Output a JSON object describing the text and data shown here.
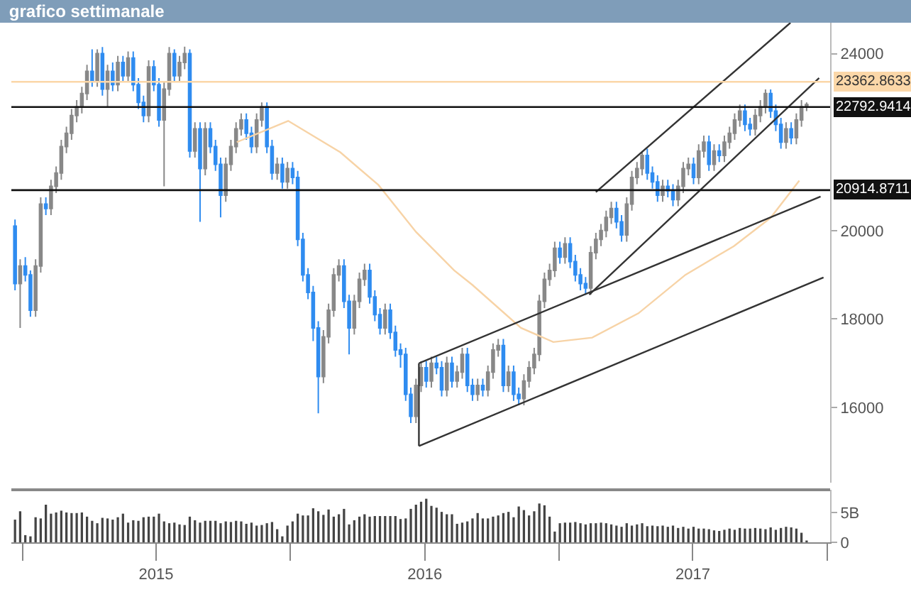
{
  "chart_data": [
    {
      "type": "candlestick",
      "title": "grafico settimanale",
      "tick_labels": "y",
      "x": [
        "2014-12-22",
        "2014-12-29",
        "2015-01-05",
        "2015-01-12",
        "2015-01-19",
        "2015-01-26",
        "2015-02-02",
        "2015-02-09",
        "2015-02-16",
        "2015-02-23",
        "2015-03-02",
        "2015-03-09",
        "2015-03-16",
        "2015-03-23",
        "2015-03-30",
        "2015-04-06",
        "2015-04-13",
        "2015-04-20",
        "2015-04-27",
        "2015-05-04",
        "2015-05-11",
        "2015-05-18",
        "2015-05-25",
        "2015-06-01",
        "2015-06-08",
        "2015-06-15",
        "2015-06-22",
        "2015-06-29",
        "2015-07-06",
        "2015-07-13",
        "2015-07-20",
        "2015-07-27",
        "2015-08-03",
        "2015-08-10",
        "2015-08-17",
        "2015-08-24",
        "2015-08-31",
        "2015-09-07",
        "2015-09-14",
        "2015-09-21",
        "2015-09-28",
        "2015-10-05",
        "2015-10-12",
        "2015-10-19",
        "2015-10-26",
        "2015-11-02",
        "2015-11-09",
        "2015-11-16",
        "2015-11-23",
        "2015-11-30",
        "2015-12-07",
        "2015-12-14",
        "2015-12-21",
        "2015-12-28",
        "2016-01-04",
        "2016-01-11",
        "2016-01-18",
        "2016-01-25",
        "2016-02-01",
        "2016-02-08",
        "2016-02-15",
        "2016-02-22",
        "2016-02-29",
        "2016-03-07",
        "2016-03-14",
        "2016-03-21",
        "2016-03-28",
        "2016-04-04",
        "2016-04-11",
        "2016-04-18",
        "2016-04-25",
        "2016-05-02",
        "2016-05-09",
        "2016-05-16",
        "2016-05-23",
        "2016-05-30",
        "2016-06-06",
        "2016-06-13",
        "2016-06-20",
        "2016-06-27",
        "2016-07-04",
        "2016-07-11",
        "2016-07-18",
        "2016-07-25",
        "2016-08-01",
        "2016-08-08",
        "2016-08-15",
        "2016-08-22",
        "2016-08-29",
        "2016-09-05",
        "2016-09-12",
        "2016-09-19",
        "2016-09-26",
        "2016-10-03",
        "2016-10-10",
        "2016-10-17",
        "2016-10-24",
        "2016-10-31",
        "2016-11-07",
        "2016-11-14",
        "2016-11-21",
        "2016-11-28",
        "2016-12-05",
        "2016-12-12",
        "2016-12-19",
        "2016-12-26",
        "2017-01-02",
        "2017-01-09",
        "2017-01-16",
        "2017-01-23",
        "2017-01-30",
        "2017-02-06",
        "2017-02-13",
        "2017-02-20",
        "2017-02-27",
        "2017-03-06",
        "2017-03-13",
        "2017-03-20",
        "2017-03-27",
        "2017-04-03",
        "2017-04-10",
        "2017-04-17",
        "2017-04-24",
        "2017-05-01",
        "2017-05-08",
        "2017-05-15",
        "2017-05-22",
        "2017-05-29",
        "2017-06-05",
        "2017-06-12",
        "2017-06-19",
        "2017-06-26",
        "2017-07-03",
        "2017-07-10",
        "2017-07-17",
        "2017-07-24",
        "2017-07-31",
        "2017-08-07",
        "2017-08-14",
        "2017-08-21",
        "2017-08-28",
        "2017-09-04",
        "2017-09-11",
        "2017-09-18",
        "2017-09-25",
        "2017-10-02",
        "2017-10-09",
        "2017-10-16",
        "2017-10-23",
        "2017-10-30",
        "2017-11-06",
        "2017-11-13",
        "2017-11-20",
        "2017-11-27",
        "2017-12-04"
      ],
      "ohlc": [
        [
          20100,
          20250,
          18650,
          18800
        ],
        [
          18800,
          19350,
          17800,
          19200
        ],
        [
          19200,
          19400,
          18850,
          19000
        ],
        [
          19000,
          19100,
          18050,
          18200
        ],
        [
          18200,
          19350,
          18050,
          19200
        ],
        [
          19200,
          20750,
          19050,
          20600
        ],
        [
          20600,
          20750,
          20350,
          20500
        ],
        [
          20500,
          21150,
          20350,
          21000
        ],
        [
          21000,
          21450,
          20850,
          21300
        ],
        [
          21300,
          22050,
          21150,
          21900
        ],
        [
          21900,
          22350,
          21750,
          22200
        ],
        [
          22200,
          22750,
          22050,
          22600
        ],
        [
          22600,
          22950,
          22450,
          22800
        ],
        [
          22800,
          23250,
          22650,
          23100
        ],
        [
          23100,
          23750,
          22950,
          23600
        ],
        [
          23600,
          24100,
          23250,
          23400
        ],
        [
          23400,
          24100,
          23250,
          24000
        ],
        [
          24000,
          24150,
          23050,
          23200
        ],
        [
          23200,
          23750,
          22800,
          23600
        ],
        [
          23600,
          23800,
          23150,
          23300
        ],
        [
          23300,
          23950,
          23150,
          23800
        ],
        [
          23800,
          23950,
          23350,
          23500
        ],
        [
          23500,
          24050,
          23350,
          23900
        ],
        [
          23900,
          24050,
          23150,
          23300
        ],
        [
          23300,
          23450,
          22750,
          22900
        ],
        [
          22900,
          23050,
          22450,
          22600
        ],
        [
          22600,
          23850,
          22450,
          23700
        ],
        [
          23700,
          23850,
          23150,
          23300
        ],
        [
          23300,
          23450,
          22350,
          22500
        ],
        [
          22500,
          23350,
          21000,
          23200
        ],
        [
          23200,
          24150,
          23050,
          24000
        ],
        [
          24000,
          24100,
          23350,
          23500
        ],
        [
          23500,
          23950,
          23350,
          23800
        ],
        [
          23800,
          24160,
          23650,
          24000
        ],
        [
          24000,
          24100,
          21650,
          21800
        ],
        [
          21800,
          22450,
          21650,
          22300
        ],
        [
          22300,
          22450,
          20200,
          21400
        ],
        [
          21400,
          22450,
          21250,
          22300
        ],
        [
          22300,
          22450,
          21750,
          21900
        ],
        [
          21900,
          22050,
          21350,
          21500
        ],
        [
          21500,
          21650,
          20300,
          20800
        ],
        [
          20800,
          21650,
          20650,
          21500
        ],
        [
          21500,
          22050,
          21350,
          21900
        ],
        [
          21900,
          22450,
          21750,
          22300
        ],
        [
          22300,
          22650,
          22150,
          22500
        ],
        [
          22500,
          22650,
          22050,
          22200
        ],
        [
          22200,
          22350,
          21750,
          21900
        ],
        [
          21900,
          22650,
          21750,
          22500
        ],
        [
          22500,
          22900,
          22350,
          22800
        ],
        [
          22800,
          22900,
          21750,
          21900
        ],
        [
          21900,
          22050,
          21150,
          21300
        ],
        [
          21300,
          21650,
          21150,
          21500
        ],
        [
          21500,
          21650,
          20950,
          21100
        ],
        [
          21100,
          21550,
          20950,
          21400
        ],
        [
          21400,
          21550,
          21050,
          21200
        ],
        [
          21200,
          21350,
          19650,
          19800
        ],
        [
          19800,
          19950,
          18850,
          19000
        ],
        [
          19000,
          19150,
          18450,
          18600
        ],
        [
          18600,
          18750,
          17500,
          17800
        ],
        [
          17800,
          17950,
          15870,
          16700
        ],
        [
          16700,
          17750,
          16550,
          17600
        ],
        [
          17600,
          18350,
          17450,
          18200
        ],
        [
          18200,
          19150,
          18050,
          19000
        ],
        [
          19000,
          19350,
          18850,
          19200
        ],
        [
          19200,
          19350,
          18250,
          18400
        ],
        [
          18400,
          18550,
          17200,
          17800
        ],
        [
          17800,
          18550,
          17650,
          18400
        ],
        [
          18400,
          19050,
          18250,
          18900
        ],
        [
          18900,
          19250,
          18750,
          19100
        ],
        [
          19100,
          19250,
          18350,
          18500
        ],
        [
          18500,
          18650,
          17950,
          18100
        ],
        [
          18100,
          18250,
          17650,
          17800
        ],
        [
          17800,
          18350,
          17650,
          18200
        ],
        [
          18200,
          18350,
          17550,
          17700
        ],
        [
          17700,
          17850,
          17150,
          17300
        ],
        [
          17300,
          17450,
          16900,
          17200
        ],
        [
          17200,
          17350,
          16150,
          16300
        ],
        [
          16300,
          16450,
          15650,
          15800
        ],
        [
          15800,
          16650,
          15650,
          16500
        ],
        [
          16500,
          17050,
          16350,
          16900
        ],
        [
          16900,
          17050,
          16450,
          16600
        ],
        [
          16600,
          17150,
          16450,
          17000
        ],
        [
          17000,
          17150,
          16750,
          16900
        ],
        [
          16900,
          17050,
          16250,
          16400
        ],
        [
          16400,
          17150,
          16250,
          17000
        ],
        [
          17000,
          17150,
          16450,
          16600
        ],
        [
          16600,
          16950,
          16450,
          16800
        ],
        [
          16800,
          17350,
          16650,
          17200
        ],
        [
          17200,
          17350,
          16350,
          16500
        ],
        [
          16500,
          16650,
          16150,
          16300
        ],
        [
          16300,
          16650,
          16150,
          16500
        ],
        [
          16500,
          16650,
          16250,
          16400
        ],
        [
          16400,
          16950,
          16250,
          16800
        ],
        [
          16800,
          17450,
          16650,
          17300
        ],
        [
          17300,
          17550,
          17150,
          17400
        ],
        [
          17400,
          17550,
          16350,
          16500
        ],
        [
          16500,
          16950,
          16350,
          16800
        ],
        [
          16800,
          16950,
          16150,
          16300
        ],
        [
          16300,
          16450,
          16050,
          16200
        ],
        [
          16200,
          16750,
          16050,
          16600
        ],
        [
          16600,
          17050,
          16450,
          16900
        ],
        [
          16900,
          17350,
          16750,
          17200
        ],
        [
          17200,
          18550,
          17050,
          18400
        ],
        [
          18400,
          19050,
          18250,
          18900
        ],
        [
          18900,
          19250,
          18750,
          19100
        ],
        [
          19100,
          19750,
          18950,
          19600
        ],
        [
          19600,
          19750,
          19250,
          19400
        ],
        [
          19400,
          19850,
          19250,
          19700
        ],
        [
          19700,
          19850,
          19150,
          19300
        ],
        [
          19300,
          19450,
          18850,
          19000
        ],
        [
          19000,
          19150,
          18650,
          18800
        ],
        [
          18800,
          18950,
          18550,
          18700
        ],
        [
          18700,
          19650,
          18550,
          19500
        ],
        [
          19500,
          19950,
          19350,
          19800
        ],
        [
          19800,
          20150,
          19650,
          20000
        ],
        [
          20000,
          20450,
          19850,
          20300
        ],
        [
          20300,
          20650,
          20150,
          20500
        ],
        [
          20500,
          20650,
          20050,
          20200
        ],
        [
          20200,
          20350,
          19750,
          19900
        ],
        [
          19900,
          20750,
          19750,
          20600
        ],
        [
          20600,
          21350,
          20450,
          21200
        ],
        [
          21200,
          21550,
          21050,
          21400
        ],
        [
          21400,
          21800,
          21250,
          21700
        ],
        [
          21700,
          21850,
          21150,
          21300
        ],
        [
          21300,
          21450,
          20950,
          21100
        ],
        [
          21100,
          21250,
          20650,
          20800
        ],
        [
          20800,
          21150,
          20650,
          21000
        ],
        [
          21000,
          21150,
          20750,
          20900
        ],
        [
          20900,
          21050,
          20550,
          20700
        ],
        [
          20700,
          21150,
          20550,
          21000
        ],
        [
          21000,
          21550,
          20850,
          21400
        ],
        [
          21400,
          21650,
          21250,
          21500
        ],
        [
          21500,
          21650,
          21050,
          21200
        ],
        [
          21200,
          21950,
          21050,
          21800
        ],
        [
          21800,
          22150,
          21650,
          22000
        ],
        [
          22000,
          22150,
          21350,
          21500
        ],
        [
          21500,
          21950,
          21350,
          21800
        ],
        [
          21800,
          21950,
          21550,
          21700
        ],
        [
          21700,
          22150,
          21550,
          22000
        ],
        [
          22000,
          22350,
          21850,
          22200
        ],
        [
          22200,
          22650,
          22050,
          22500
        ],
        [
          22500,
          22850,
          22350,
          22700
        ],
        [
          22700,
          22850,
          22250,
          22400
        ],
        [
          22400,
          22550,
          22150,
          22300
        ],
        [
          22300,
          22750,
          22150,
          22600
        ],
        [
          22600,
          22950,
          22450,
          22800
        ],
        [
          22800,
          23190,
          22650,
          23100
        ],
        [
          23100,
          23190,
          22550,
          22700
        ],
        [
          22700,
          22850,
          22250,
          22400
        ],
        [
          22400,
          22550,
          21850,
          22000
        ],
        [
          22000,
          22450,
          21850,
          22300
        ],
        [
          22300,
          22450,
          21950,
          22100
        ],
        [
          22100,
          22650,
          21950,
          22500
        ],
        [
          22500,
          22950,
          22350,
          22800
        ],
        [
          22800,
          22900,
          22700,
          22850
        ]
      ],
      "colors": [
        "#2f8cf0",
        "#888888",
        "#2f8cf0",
        "#2f8cf0",
        "#888888",
        "#888888",
        "#2f8cf0",
        "#888888",
        "#888888",
        "#888888",
        "#888888",
        "#888888",
        "#888888",
        "#888888",
        "#888888",
        "#2f8cf0",
        "#888888",
        "#2f8cf0",
        "#888888",
        "#2f8cf0",
        "#888888",
        "#2f8cf0",
        "#888888",
        "#2f8cf0",
        "#2f8cf0",
        "#2f8cf0",
        "#888888",
        "#2f8cf0",
        "#2f8cf0",
        "#888888",
        "#888888",
        "#2f8cf0",
        "#888888",
        "#888888",
        "#2f8cf0",
        "#888888",
        "#2f8cf0",
        "#888888",
        "#2f8cf0",
        "#2f8cf0",
        "#2f8cf0",
        "#888888",
        "#888888",
        "#888888",
        "#888888",
        "#2f8cf0",
        "#2f8cf0",
        "#888888",
        "#888888",
        "#2f8cf0",
        "#2f8cf0",
        "#888888",
        "#2f8cf0",
        "#888888",
        "#2f8cf0",
        "#2f8cf0",
        "#2f8cf0",
        "#2f8cf0",
        "#2f8cf0",
        "#2f8cf0",
        "#888888",
        "#888888",
        "#888888",
        "#888888",
        "#2f8cf0",
        "#2f8cf0",
        "#888888",
        "#888888",
        "#888888",
        "#2f8cf0",
        "#2f8cf0",
        "#2f8cf0",
        "#888888",
        "#2f8cf0",
        "#2f8cf0",
        "#2f8cf0",
        "#2f8cf0",
        "#2f8cf0",
        "#888888",
        "#888888",
        "#2f8cf0",
        "#888888",
        "#2f8cf0",
        "#2f8cf0",
        "#888888",
        "#2f8cf0",
        "#888888",
        "#888888",
        "#2f8cf0",
        "#2f8cf0",
        "#888888",
        "#2f8cf0",
        "#888888",
        "#888888",
        "#888888",
        "#2f8cf0",
        "#888888",
        "#2f8cf0",
        "#2f8cf0",
        "#888888",
        "#888888",
        "#888888",
        "#888888",
        "#888888",
        "#888888",
        "#888888",
        "#2f8cf0",
        "#888888",
        "#2f8cf0",
        "#2f8cf0",
        "#2f8cf0",
        "#2f8cf0",
        "#888888",
        "#888888",
        "#888888",
        "#888888",
        "#888888",
        "#2f8cf0",
        "#2f8cf0",
        "#888888",
        "#888888",
        "#888888",
        "#888888",
        "#2f8cf0",
        "#2f8cf0",
        "#2f8cf0",
        "#888888",
        "#2f8cf0",
        "#2f8cf0",
        "#888888",
        "#888888",
        "#888888",
        "#2f8cf0",
        "#888888",
        "#888888",
        "#2f8cf0",
        "#888888",
        "#2f8cf0",
        "#888888",
        "#888888",
        "#888888",
        "#888888",
        "#2f8cf0",
        "#2f8cf0",
        "#888888",
        "#888888",
        "#888888",
        "#2f8cf0",
        "#2f8cf0",
        "#2f8cf0",
        "#888888",
        "#2f8cf0",
        "#888888",
        "#888888",
        "#888888"
      ],
      "series": [
        {
          "type": "line",
          "color": "#f7d3a6",
          "x": [
            "2015-10-20",
            "2015-12-29",
            "2016-03-09",
            "2016-04-30",
            "2016-06-20",
            "2016-08-11",
            "2016-09-05",
            "2016-11-10",
            "2016-12-24",
            "2017-02-15",
            "2017-04-19",
            "2017-06-22",
            "2017-08-27",
            "2017-10-16",
            "2017-11-24"
          ],
          "values": [
            22000,
            22480,
            21770,
            21030,
            19970,
            19100,
            18770,
            17800,
            17480,
            17580,
            18130,
            19000,
            19650,
            20290,
            21130
          ]
        },
        {
          "type": "line",
          "color": "#333333",
          "x": [
            "2016-06-24",
            "2017-12-27"
          ],
          "values": [
            15130,
            18940
          ]
        },
        {
          "type": "line",
          "color": "#333333",
          "x": [
            "2016-06-24",
            "2017-12-23"
          ],
          "values": [
            17000,
            20770
          ]
        },
        {
          "type": "line",
          "color": "#333333",
          "x": [
            "2016-06-24",
            "2016-06-24"
          ],
          "values": [
            15130,
            17000
          ]
        },
        {
          "type": "line",
          "color": "#333333",
          "x": [
            "2017-02-11",
            "2017-12-21"
          ],
          "values": [
            18550,
            23450
          ]
        },
        {
          "type": "line",
          "color": "#333333",
          "x": [
            "2017-02-20",
            "2017-11-12"
          ],
          "values": [
            20870,
            24700
          ]
        }
      ],
      "xlim": [
        "2014-12-17",
        "2018-01-05"
      ],
      "ylim": [
        14300,
        24700
      ],
      "yticks": [
        16000,
        18000,
        20000,
        24000
      ],
      "ref_lines": [
        {
          "axis": "y",
          "value": 23362.8633,
          "label": "23362.8633",
          "color": "#fbd7a8"
        },
        {
          "axis": "y",
          "value": 22792.9414,
          "label": "22792.9414",
          "color": "#111111"
        },
        {
          "axis": "y",
          "value": 20914.8711,
          "label": "20914.8711",
          "color": "#111111"
        }
      ]
    },
    {
      "type": "bar",
      "color": "#444444",
      "x": [
        "2014-12-22",
        "2014-12-29",
        "2015-01-05",
        "2015-01-12",
        "2015-01-19",
        "2015-01-26",
        "2015-02-02",
        "2015-02-09",
        "2015-02-16",
        "2015-02-23",
        "2015-03-02",
        "2015-03-09",
        "2015-03-16",
        "2015-03-23",
        "2015-03-30",
        "2015-04-06",
        "2015-04-13",
        "2015-04-20",
        "2015-04-27",
        "2015-05-04",
        "2015-05-11",
        "2015-05-18",
        "2015-05-25",
        "2015-06-01",
        "2015-06-08",
        "2015-06-15",
        "2015-06-22",
        "2015-06-29",
        "2015-07-06",
        "2015-07-13",
        "2015-07-20",
        "2015-07-27",
        "2015-08-03",
        "2015-08-10",
        "2015-08-17",
        "2015-08-24",
        "2015-08-31",
        "2015-09-07",
        "2015-09-14",
        "2015-09-21",
        "2015-09-28",
        "2015-10-05",
        "2015-10-12",
        "2015-10-19",
        "2015-10-26",
        "2015-11-02",
        "2015-11-09",
        "2015-11-16",
        "2015-11-23",
        "2015-11-30",
        "2015-12-07",
        "2015-12-14",
        "2015-12-21",
        "2015-12-28",
        "2016-01-04",
        "2016-01-11",
        "2016-01-18",
        "2016-01-25",
        "2016-02-01",
        "2016-02-08",
        "2016-02-15",
        "2016-02-22",
        "2016-02-29",
        "2016-03-07",
        "2016-03-14",
        "2016-03-21",
        "2016-03-28",
        "2016-04-04",
        "2016-04-11",
        "2016-04-18",
        "2016-04-25",
        "2016-05-02",
        "2016-05-09",
        "2016-05-16",
        "2016-05-23",
        "2016-05-30",
        "2016-06-06",
        "2016-06-13",
        "2016-06-20",
        "2016-06-27",
        "2016-07-04",
        "2016-07-11",
        "2016-07-18",
        "2016-07-25",
        "2016-08-01",
        "2016-08-08",
        "2016-08-15",
        "2016-08-22",
        "2016-08-29",
        "2016-09-05",
        "2016-09-12",
        "2016-09-19",
        "2016-09-26",
        "2016-10-03",
        "2016-10-10",
        "2016-10-17",
        "2016-10-24",
        "2016-10-31",
        "2016-11-07",
        "2016-11-14",
        "2016-11-21",
        "2016-11-28",
        "2016-12-05",
        "2016-12-12",
        "2016-12-19",
        "2016-12-26",
        "2017-01-02",
        "2017-01-09",
        "2017-01-16",
        "2017-01-23",
        "2017-01-30",
        "2017-02-06",
        "2017-02-13",
        "2017-02-20",
        "2017-02-27",
        "2017-03-06",
        "2017-03-13",
        "2017-03-20",
        "2017-03-27",
        "2017-04-03",
        "2017-04-10",
        "2017-04-17",
        "2017-04-24",
        "2017-05-01",
        "2017-05-08",
        "2017-05-15",
        "2017-05-22",
        "2017-05-29",
        "2017-06-05",
        "2017-06-12",
        "2017-06-19",
        "2017-06-26",
        "2017-07-03",
        "2017-07-10",
        "2017-07-17",
        "2017-07-24",
        "2017-07-31",
        "2017-08-07",
        "2017-08-14",
        "2017-08-21",
        "2017-08-28",
        "2017-09-04",
        "2017-09-11",
        "2017-09-18",
        "2017-09-25",
        "2017-10-02",
        "2017-10-09",
        "2017-10-16",
        "2017-10-23",
        "2017-10-30",
        "2017-11-06",
        "2017-11-13",
        "2017-11-20",
        "2017-11-27",
        "2017-12-04"
      ],
      "values": [
        3.8,
        5.2,
        1.2,
        1.0,
        4.2,
        4.0,
        6.3,
        4.8,
        5.0,
        5.3,
        5.0,
        4.9,
        4.9,
        5.0,
        4.3,
        3.6,
        3.2,
        4.1,
        4.0,
        3.8,
        4.2,
        4.8,
        3.3,
        3.7,
        3.6,
        4.2,
        4.3,
        4.3,
        4.8,
        3.5,
        3.2,
        3.3,
        3.0,
        2.9,
        4.3,
        3.7,
        3.3,
        3.6,
        3.6,
        3.6,
        3.2,
        3.5,
        3.4,
        3.6,
        3.5,
        3.1,
        3.3,
        2.8,
        2.9,
        3.2,
        3.4,
        2.2,
        1.0,
        2.8,
        3.5,
        4.8,
        4.5,
        4.5,
        5.7,
        5.2,
        4.6,
        5.5,
        4.3,
        4.7,
        5.6,
        3.0,
        3.7,
        4.3,
        4.7,
        4.3,
        4.4,
        4.4,
        4.4,
        4.4,
        4.4,
        3.9,
        4.0,
        5.6,
        6.3,
        6.8,
        7.3,
        6.1,
        5.8,
        5.1,
        4.7,
        4.7,
        3.1,
        3.3,
        3.5,
        4.0,
        4.9,
        4.0,
        4.0,
        4.3,
        4.5,
        4.9,
        5.1,
        4.2,
        6.0,
        5.4,
        4.5,
        5.2,
        6.5,
        6.2,
        4.3,
        1.8,
        3.2,
        3.3,
        3.3,
        3.4,
        3.2,
        3.0,
        3.2,
        3.2,
        3.3,
        3.2,
        3.0,
        2.8,
        2.6,
        3.2,
        2.8,
        3.0,
        3.2,
        2.7,
        2.8,
        2.7,
        2.8,
        2.6,
        2.8,
        2.4,
        2.6,
        2.3,
        2.6,
        2.3,
        2.3,
        2.2,
        2.0,
        1.9,
        2.1,
        2.3,
        2.1,
        2.4,
        2.3,
        2.3,
        2.4,
        2.3,
        2.2,
        2.5,
        2.1,
        2.4,
        2.6,
        2.5,
        2.3,
        1.6,
        0.3
      ],
      "xlim": [
        "2014-12-17",
        "2018-01-05"
      ],
      "xticks": [
        {
          "value": "2015-01-01",
          "label": null
        },
        {
          "value": "2015-07-02",
          "label": "2015"
        },
        {
          "value": "2016-01-01",
          "label": null
        },
        {
          "value": "2016-07-02",
          "label": "2016"
        },
        {
          "value": "2017-01-01",
          "label": null
        },
        {
          "value": "2017-07-02",
          "label": "2017"
        },
        {
          "value": "2018-01-01",
          "label": null
        }
      ],
      "ylim": [
        0,
        8.8
      ],
      "yticks": [
        {
          "value": 5,
          "label": "5B"
        },
        {
          "value": 0,
          "label": "0"
        }
      ]
    }
  ]
}
